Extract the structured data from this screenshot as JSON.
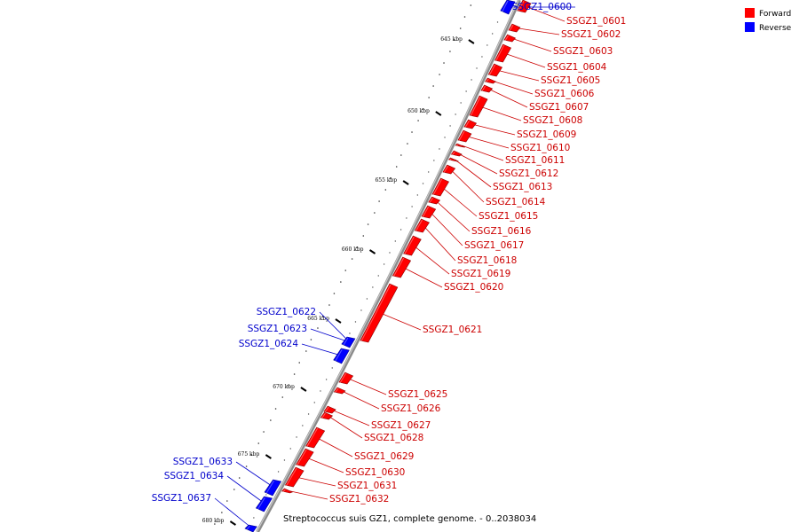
{
  "legend": {
    "items": [
      {
        "label": "Forward",
        "color": "#ff0000"
      },
      {
        "label": "Reverse",
        "color": "#0000ff"
      }
    ]
  },
  "caption": "Streptococcus suis GZ1, complete genome. - 0..2038034",
  "colors": {
    "forward": "#ff0000",
    "reverse": "#0000ff",
    "backbone": "#777777",
    "label_forward": "#cc0000",
    "label_reverse": "#0000cc"
  },
  "ticks": [
    "645 kbp",
    "650 kbp",
    "655 kbp",
    "660 kbp",
    "665 kbp",
    "670 kbp",
    "675 kbp",
    "680 kbp"
  ],
  "genes": [
    {
      "name": "SSGZ1_0600",
      "strand": "reverse"
    },
    {
      "name": "SSGZ1_0601",
      "strand": "forward"
    },
    {
      "name": "SSGZ1_0602",
      "strand": "forward"
    },
    {
      "name": "SSGZ1_0603",
      "strand": "forward"
    },
    {
      "name": "SSGZ1_0604",
      "strand": "forward"
    },
    {
      "name": "SSGZ1_0605",
      "strand": "forward"
    },
    {
      "name": "SSGZ1_0606",
      "strand": "forward"
    },
    {
      "name": "SSGZ1_0607",
      "strand": "forward"
    },
    {
      "name": "SSGZ1_0608",
      "strand": "forward"
    },
    {
      "name": "SSGZ1_0609",
      "strand": "forward"
    },
    {
      "name": "SSGZ1_0610",
      "strand": "forward"
    },
    {
      "name": "SSGZ1_0611",
      "strand": "forward"
    },
    {
      "name": "SSGZ1_0612",
      "strand": "forward"
    },
    {
      "name": "SSGZ1_0613",
      "strand": "forward"
    },
    {
      "name": "SSGZ1_0614",
      "strand": "forward"
    },
    {
      "name": "SSGZ1_0615",
      "strand": "forward"
    },
    {
      "name": "SSGZ1_0616",
      "strand": "forward"
    },
    {
      "name": "SSGZ1_0617",
      "strand": "forward"
    },
    {
      "name": "SSGZ1_0618",
      "strand": "forward"
    },
    {
      "name": "SSGZ1_0619",
      "strand": "forward"
    },
    {
      "name": "SSGZ1_0620",
      "strand": "forward"
    },
    {
      "name": "SSGZ1_0621",
      "strand": "forward"
    },
    {
      "name": "SSGZ1_0622",
      "strand": "reverse"
    },
    {
      "name": "SSGZ1_0623",
      "strand": "reverse"
    },
    {
      "name": "SSGZ1_0624",
      "strand": "reverse"
    },
    {
      "name": "SSGZ1_0625",
      "strand": "forward"
    },
    {
      "name": "SSGZ1_0626",
      "strand": "forward"
    },
    {
      "name": "SSGZ1_0627",
      "strand": "forward"
    },
    {
      "name": "SSGZ1_0628",
      "strand": "forward"
    },
    {
      "name": "SSGZ1_0629",
      "strand": "forward"
    },
    {
      "name": "SSGZ1_0630",
      "strand": "forward"
    },
    {
      "name": "SSGZ1_0631",
      "strand": "forward"
    },
    {
      "name": "SSGZ1_0632",
      "strand": "forward"
    },
    {
      "name": "SSGZ1_0633",
      "strand": "reverse"
    },
    {
      "name": "SSGZ1_0634",
      "strand": "reverse"
    },
    {
      "name": "SSGZ1_0637",
      "strand": "reverse"
    }
  ]
}
